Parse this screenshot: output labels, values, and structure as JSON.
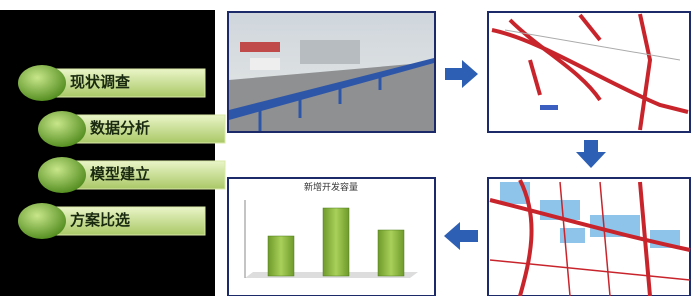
{
  "steps": [
    "现状调查",
    "数据分析",
    "模型建立",
    "方案比选"
  ],
  "inset_chart": {
    "title": "新增开发容量",
    "values": [
      40,
      68,
      46
    ]
  }
}
